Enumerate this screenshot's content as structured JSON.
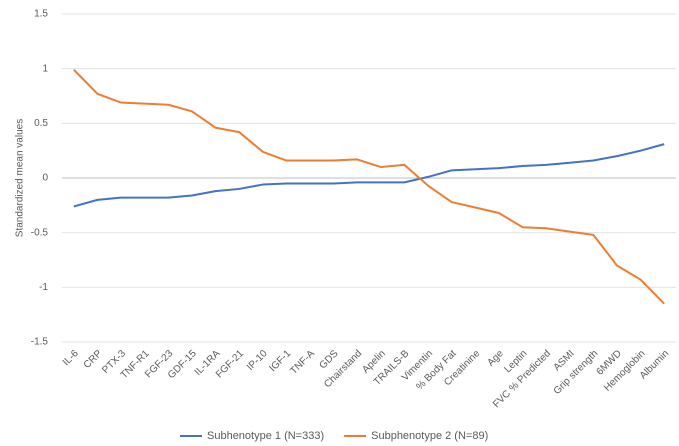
{
  "chart_data": {
    "type": "line",
    "y_label": "Standardized mean values",
    "categories": [
      "IL-6",
      "CRP",
      "PTX-3",
      "TNF-R1",
      "FGF-23",
      "GDF-15",
      "IL-1RA",
      "FGF-21",
      "IP-10",
      "IGF-1",
      "TNF-A",
      "GDS",
      "Chairstand",
      "Apelin",
      "TRAILS-B",
      "Vimentin",
      "% Body Fat",
      "Creatinine",
      "Age",
      "Leptin",
      "FVC % Predicted",
      "ASMI",
      "Grip strength",
      "6MWD",
      "Hemoglobin",
      "Albumin"
    ],
    "series": [
      {
        "name": "Subhenotype 1 (N=333)",
        "color": "#4472c4",
        "values": [
          -0.26,
          -0.2,
          -0.18,
          -0.18,
          -0.18,
          -0.16,
          -0.12,
          -0.1,
          -0.06,
          -0.05,
          -0.05,
          -0.05,
          -0.04,
          -0.04,
          -0.04,
          0.01,
          0.07,
          0.08,
          0.09,
          0.11,
          0.12,
          0.14,
          0.16,
          0.2,
          0.25,
          0.31
        ]
      },
      {
        "name": "Subphenotype 2 (N=89)",
        "color": "#ed7d31",
        "values": [
          0.99,
          0.77,
          0.69,
          0.68,
          0.67,
          0.61,
          0.46,
          0.42,
          0.24,
          0.16,
          0.16,
          0.16,
          0.17,
          0.1,
          0.12,
          -0.07,
          -0.22,
          -0.27,
          -0.32,
          -0.45,
          -0.46,
          -0.49,
          -0.52,
          -0.8,
          -0.93,
          -1.15
        ]
      }
    ],
    "ylim": [
      -1.5,
      1.5
    ],
    "yticks": [
      -1.5,
      -1,
      -0.5,
      0,
      0.5,
      1,
      1.5
    ],
    "grid": true
  }
}
